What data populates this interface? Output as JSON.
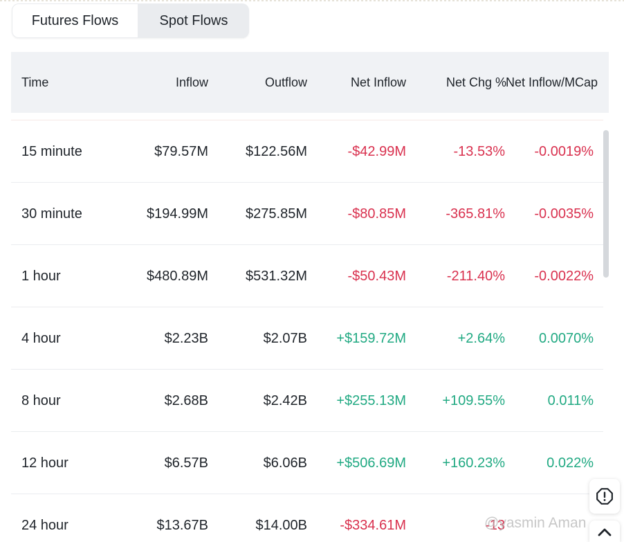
{
  "tabs": [
    {
      "label": "Futures Flows",
      "active": true
    },
    {
      "label": "Spot Flows",
      "active": false
    }
  ],
  "table": {
    "columns": [
      "Time",
      "Inflow",
      "Outflow",
      "Net Inflow",
      "Net Chg %",
      "Net Inflow/MCap"
    ],
    "rows": [
      {
        "time": "15 minute",
        "inflow": "$79.57M",
        "outflow": "$122.56M",
        "net_inflow": "-$42.99M",
        "net_chg": "-13.53%",
        "net_mcap": "-0.0019%",
        "trend": "negative"
      },
      {
        "time": "30 minute",
        "inflow": "$194.99M",
        "outflow": "$275.85M",
        "net_inflow": "-$80.85M",
        "net_chg": "-365.81%",
        "net_mcap": "-0.0035%",
        "trend": "negative"
      },
      {
        "time": "1 hour",
        "inflow": "$480.89M",
        "outflow": "$531.32M",
        "net_inflow": "-$50.43M",
        "net_chg": "-211.40%",
        "net_mcap": "-0.0022%",
        "trend": "negative"
      },
      {
        "time": "4 hour",
        "inflow": "$2.23B",
        "outflow": "$2.07B",
        "net_inflow": "+$159.72M",
        "net_chg": "+2.64%",
        "net_mcap": "0.0070%",
        "trend": "positive"
      },
      {
        "time": "8 hour",
        "inflow": "$2.68B",
        "outflow": "$2.42B",
        "net_inflow": "+$255.13M",
        "net_chg": "+109.55%",
        "net_mcap": "0.011%",
        "trend": "positive"
      },
      {
        "time": "12 hour",
        "inflow": "$6.57B",
        "outflow": "$6.06B",
        "net_inflow": "+$506.69M",
        "net_chg": "+160.23%",
        "net_mcap": "0.022%",
        "trend": "positive"
      },
      {
        "time": "24 hour",
        "inflow": "$13.67B",
        "outflow": "$14.00B",
        "net_inflow": "-$334.61M",
        "net_chg": "-13",
        "net_mcap": "",
        "trend": "negative"
      }
    ]
  },
  "colors": {
    "negative": "#d9304e",
    "positive": "#20a982",
    "header_bg": "#f0f2f5"
  },
  "icons": {
    "report_button": "alert-octagon-icon",
    "scroll_top_button": "chevron-up-icon"
  },
  "watermark": "@yasmin Aman"
}
